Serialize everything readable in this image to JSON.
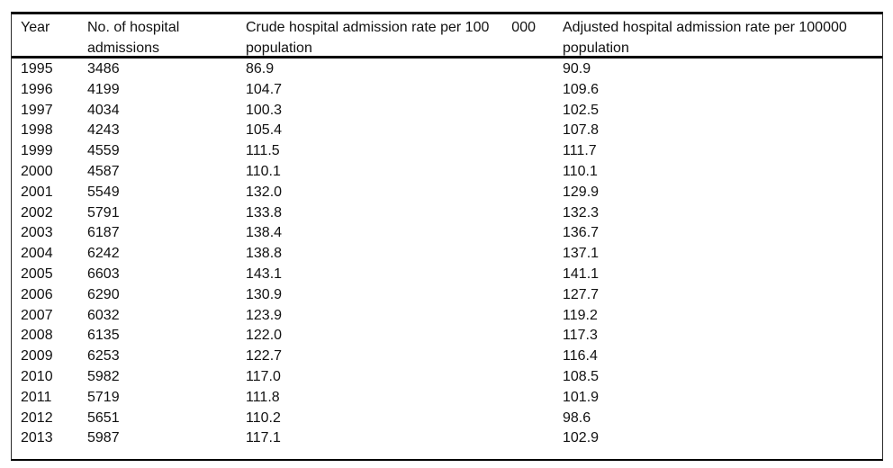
{
  "table": {
    "columns": [
      {
        "label": "Year"
      },
      {
        "label_line1": "No. of hospital",
        "label_line2": "admissions"
      },
      {
        "label_main": "Crude hospital admission rate per 100",
        "label_thousands": "000",
        "label_line2": "population"
      },
      {
        "label_main": "Adjusted hospital admission rate per 100",
        "label_thousands": "000",
        "label_line2": "population"
      }
    ],
    "rows": [
      {
        "year": "1995",
        "admissions": "3486",
        "crude": "86.9",
        "adjusted": "90.9"
      },
      {
        "year": "1996",
        "admissions": "4199",
        "crude": "104.7",
        "adjusted": "109.6"
      },
      {
        "year": "1997",
        "admissions": "4034",
        "crude": "100.3",
        "adjusted": "102.5"
      },
      {
        "year": "1998",
        "admissions": "4243",
        "crude": "105.4",
        "adjusted": "107.8"
      },
      {
        "year": "1999",
        "admissions": "4559",
        "crude": "111.5",
        "adjusted": "111.7"
      },
      {
        "year": "2000",
        "admissions": "4587",
        "crude": "110.1",
        "adjusted": "110.1"
      },
      {
        "year": "2001",
        "admissions": "5549",
        "crude": "132.0",
        "adjusted": "129.9"
      },
      {
        "year": "2002",
        "admissions": "5791",
        "crude": "133.8",
        "adjusted": "132.3"
      },
      {
        "year": "2003",
        "admissions": "6187",
        "crude": "138.4",
        "adjusted": "136.7"
      },
      {
        "year": "2004",
        "admissions": "6242",
        "crude": "138.8",
        "adjusted": "137.1"
      },
      {
        "year": "2005",
        "admissions": "6603",
        "crude": "143.1",
        "adjusted": "141.1"
      },
      {
        "year": "2006",
        "admissions": "6290",
        "crude": "130.9",
        "adjusted": "127.7"
      },
      {
        "year": "2007",
        "admissions": "6032",
        "crude": "123.9",
        "adjusted": "119.2"
      },
      {
        "year": "2008",
        "admissions": "6135",
        "crude": "122.0",
        "adjusted": "117.3"
      },
      {
        "year": "2009",
        "admissions": "6253",
        "crude": "122.7",
        "adjusted": "116.4"
      },
      {
        "year": "2010",
        "admissions": "5982",
        "crude": "117.0",
        "adjusted": "108.5"
      },
      {
        "year": "2011",
        "admissions": "5719",
        "crude": "111.8",
        "adjusted": "101.9"
      },
      {
        "year": "2012",
        "admissions": "5651",
        "crude": "110.2",
        "adjusted": "98.6"
      },
      {
        "year": "2013",
        "admissions": "5987",
        "crude": "117.1",
        "adjusted": "102.9"
      }
    ]
  }
}
